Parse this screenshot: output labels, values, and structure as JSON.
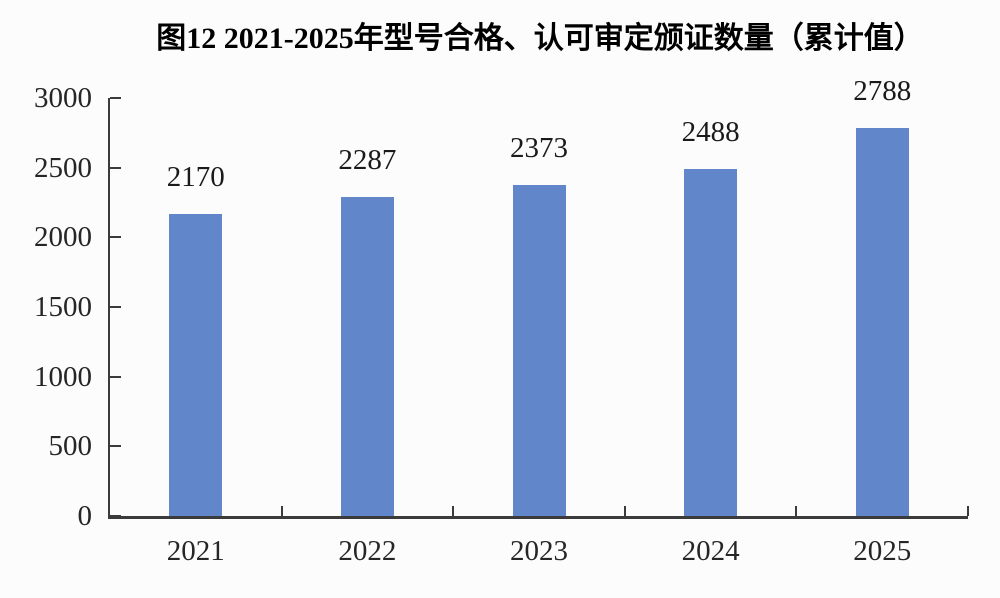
{
  "page": {
    "background_color": "#fcfcfc",
    "bar_color": "#6186c9",
    "axis_color": "#3b3b3b",
    "text_color": "#262626"
  },
  "chart_data": {
    "type": "bar",
    "title": "图12 2021-2025年型号合格、认可审定颁证数量（累计值）",
    "categories": [
      "2021",
      "2022",
      "2023",
      "2024",
      "2025"
    ],
    "values": [
      2170,
      2287,
      2373,
      2488,
      2788
    ],
    "data_labels": [
      "2170",
      "2287",
      "2373",
      "2488",
      "2788"
    ],
    "xlabel": "",
    "ylabel": "",
    "y_ticks": [
      0,
      500,
      1000,
      1500,
      2000,
      2500,
      3000
    ],
    "ylim": [
      0,
      3000
    ],
    "grid": false,
    "legend_position": "none",
    "bar_color": "#6186c9"
  }
}
